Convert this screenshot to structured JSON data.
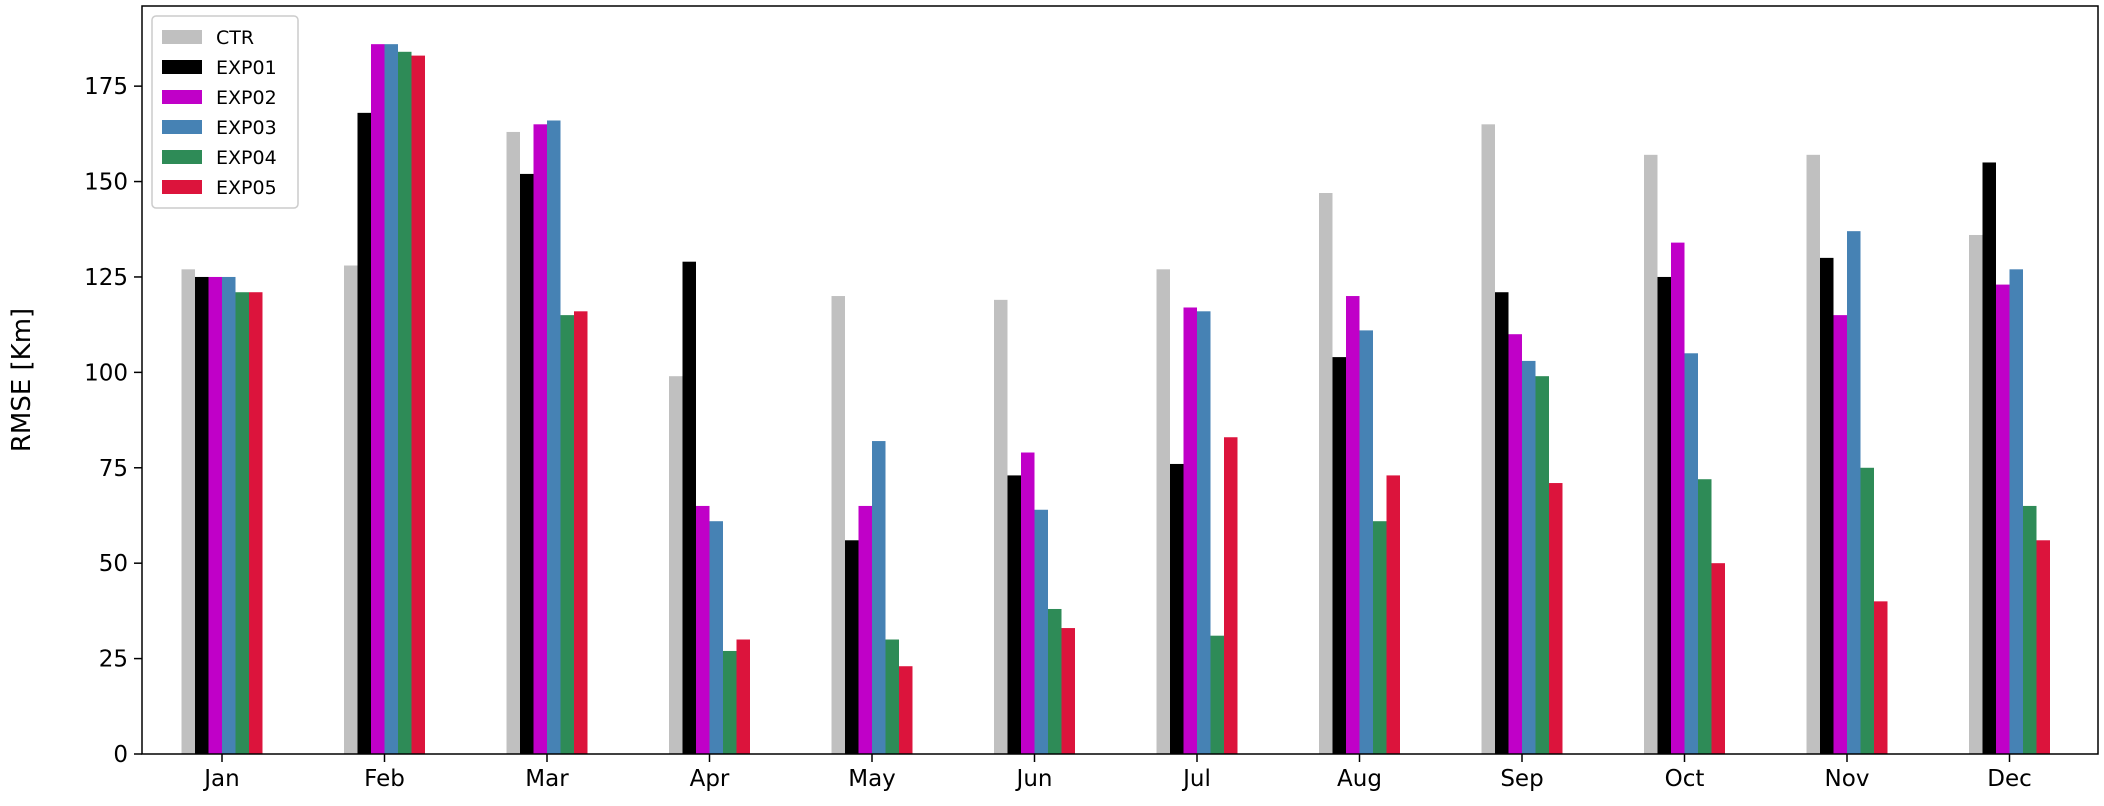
{
  "chart_data": {
    "type": "bar",
    "title": "",
    "xlabel": "",
    "ylabel": "RMSE [Km]",
    "ylim": [
      0,
      196
    ],
    "yticks": [
      0,
      25,
      50,
      75,
      100,
      125,
      150,
      175
    ],
    "grid": false,
    "legend_position": "top-left",
    "categories": [
      "Jan",
      "Feb",
      "Mar",
      "Apr",
      "May",
      "Jun",
      "Jul",
      "Aug",
      "Sep",
      "Oct",
      "Nov",
      "Dec"
    ],
    "series": [
      {
        "name": "CTR",
        "color": "#c0c0c0",
        "values": [
          127,
          128,
          163,
          99,
          120,
          119,
          127,
          147,
          165,
          157,
          157,
          136
        ]
      },
      {
        "name": "EXP01",
        "color": "#000000",
        "values": [
          125,
          168,
          152,
          129,
          56,
          73,
          76,
          104,
          121,
          125,
          130,
          155
        ]
      },
      {
        "name": "EXP02",
        "color": "#c000c8",
        "values": [
          125,
          186,
          165,
          65,
          65,
          79,
          117,
          120,
          110,
          134,
          115,
          123
        ]
      },
      {
        "name": "EXP03",
        "color": "#4682b4",
        "values": [
          125,
          186,
          166,
          61,
          82,
          64,
          116,
          111,
          103,
          105,
          137,
          127
        ]
      },
      {
        "name": "EXP04",
        "color": "#2e8b57",
        "values": [
          121,
          184,
          115,
          27,
          30,
          38,
          31,
          61,
          99,
          72,
          75,
          65
        ]
      },
      {
        "name": "EXP05",
        "color": "#dc143c",
        "values": [
          121,
          183,
          116,
          30,
          23,
          33,
          83,
          73,
          71,
          50,
          40,
          56
        ]
      }
    ]
  }
}
